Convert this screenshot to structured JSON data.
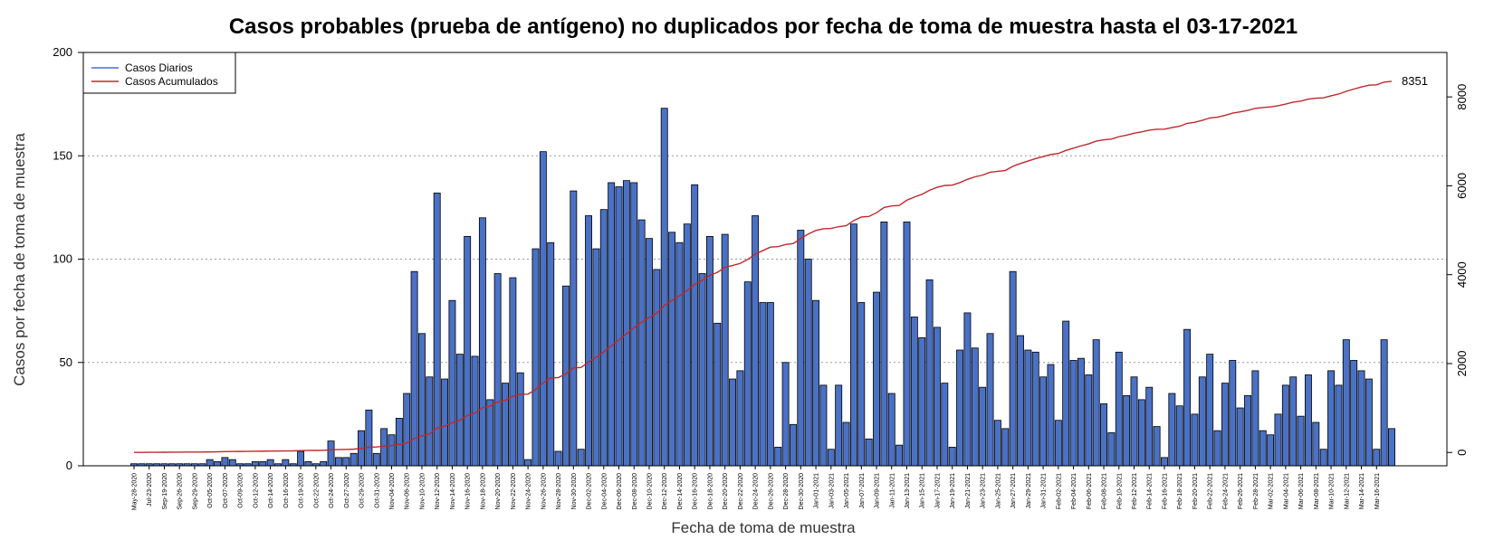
{
  "chart_data": {
    "type": "bar",
    "title": "Casos probables (prueba de antígeno) no duplicados por fecha de toma de muestra hasta el 03-17-2021",
    "xlabel": "Fecha de toma de muestra",
    "ylabel": "Casos por fecha de toma de muestra",
    "ylim": [
      0,
      200
    ],
    "yticks": [
      "0",
      "50",
      "100",
      "150",
      "200"
    ],
    "y2lim": [
      -300,
      9000
    ],
    "y2ticks": [
      "0",
      "2000",
      "4000",
      "6000",
      "8000"
    ],
    "grid": "horizontal dotted",
    "legend": {
      "placement": "top-left",
      "entries": [
        "Casos Diarios",
        "Casos Acumulados"
      ]
    },
    "colors": {
      "bar": "#4a71c4",
      "bar_border": "#000000",
      "cumulative": "#c0282d",
      "grid": "#999999"
    },
    "tick_labels": [
      "May-28-2020",
      "Jul-23-2020",
      "Sep-19-2020",
      "Sep-26-2020",
      "Sep-29-2020",
      "Oct-05-2020",
      "Oct-07-2020",
      "Oct-09-2020",
      "Oct-12-2020",
      "Oct-14-2020",
      "Oct-16-2020",
      "Oct-19-2020",
      "Oct-22-2020",
      "Oct-24-2020",
      "Oct-27-2020",
      "Oct-29-2020",
      "Oct-31-2020",
      "Nov-04-2020",
      "Nov-06-2020",
      "Nov-10-2020",
      "Nov-12-2020",
      "Nov-14-2020",
      "Nov-16-2020",
      "Nov-18-2020",
      "Nov-20-2020",
      "Nov-22-2020",
      "Nov-24-2020",
      "Nov-26-2020",
      "Nov-28-2020",
      "Nov-30-2020",
      "Dec-02-2020",
      "Dec-04-2020",
      "Dec-06-2020",
      "Dec-08-2020",
      "Dec-10-2020",
      "Dec-12-2020",
      "Dec-14-2020",
      "Dec-16-2020",
      "Dec-18-2020",
      "Dec-20-2020",
      "Dec-22-2020",
      "Dec-24-2020",
      "Dec-26-2020",
      "Dec-28-2020",
      "Dec-30-2020",
      "Jan-01-2021",
      "Jan-03-2021",
      "Jan-05-2021",
      "Jan-07-2021",
      "Jan-09-2021",
      "Jan-11-2021",
      "Jan-13-2021",
      "Jan-15-2021",
      "Jan-17-2021",
      "Jan-19-2021",
      "Jan-21-2021",
      "Jan-23-2021",
      "Jan-25-2021",
      "Jan-27-2021",
      "Jan-29-2021",
      "Jan-31-2021",
      "Feb-02-2021",
      "Feb-04-2021",
      "Feb-06-2021",
      "Feb-08-2021",
      "Feb-10-2021",
      "Feb-12-2021",
      "Feb-14-2021",
      "Feb-16-2021",
      "Feb-18-2021",
      "Feb-20-2021",
      "Feb-22-2021",
      "Feb-24-2021",
      "Feb-26-2021",
      "Feb-28-2021",
      "Mar-02-2021",
      "Mar-04-2021",
      "Mar-06-2021",
      "Mar-08-2021",
      "Mar-10-2021",
      "Mar-12-2021",
      "Mar-14-2021",
      "Mar-16-2021"
    ],
    "series": [
      {
        "name": "Casos Diarios",
        "type": "bar",
        "values": [
          1,
          1,
          1,
          1,
          1,
          1,
          1,
          1,
          1,
          1,
          3,
          2,
          4,
          3,
          1,
          1,
          2,
          2,
          3,
          1,
          3,
          1,
          7,
          2,
          1,
          2,
          12,
          4,
          4,
          6,
          17,
          27,
          6,
          18,
          15,
          23,
          35,
          94,
          64,
          43,
          132,
          42,
          80,
          54,
          111,
          53,
          120,
          32,
          93,
          40,
          91,
          45,
          3,
          105,
          152,
          108,
          7,
          87,
          133,
          8,
          121,
          105,
          124,
          137,
          135,
          138,
          137,
          119,
          110,
          95,
          173,
          113,
          108,
          117,
          136,
          93,
          111,
          69,
          112,
          42,
          46,
          89,
          121,
          79,
          79,
          9,
          50,
          20,
          114,
          100,
          80,
          39,
          8,
          39,
          21,
          117,
          79,
          13,
          84,
          118,
          35,
          10,
          118,
          72,
          62,
          90,
          67,
          40,
          9,
          56,
          74,
          57,
          38,
          64,
          22,
          18,
          94,
          63,
          56,
          55,
          43,
          49,
          22,
          70,
          51,
          52,
          44,
          61,
          30,
          16,
          55,
          34,
          43,
          32,
          38,
          19,
          4,
          35,
          29,
          66,
          25,
          43,
          54,
          17,
          40,
          51,
          28,
          34,
          46,
          17,
          15,
          25,
          39,
          43,
          24,
          44,
          21,
          8,
          46,
          39,
          61,
          51,
          46,
          42,
          8,
          61,
          18
        ]
      },
      {
        "name": "Casos Acumulados",
        "type": "line",
        "end_label": "8351"
      }
    ]
  }
}
